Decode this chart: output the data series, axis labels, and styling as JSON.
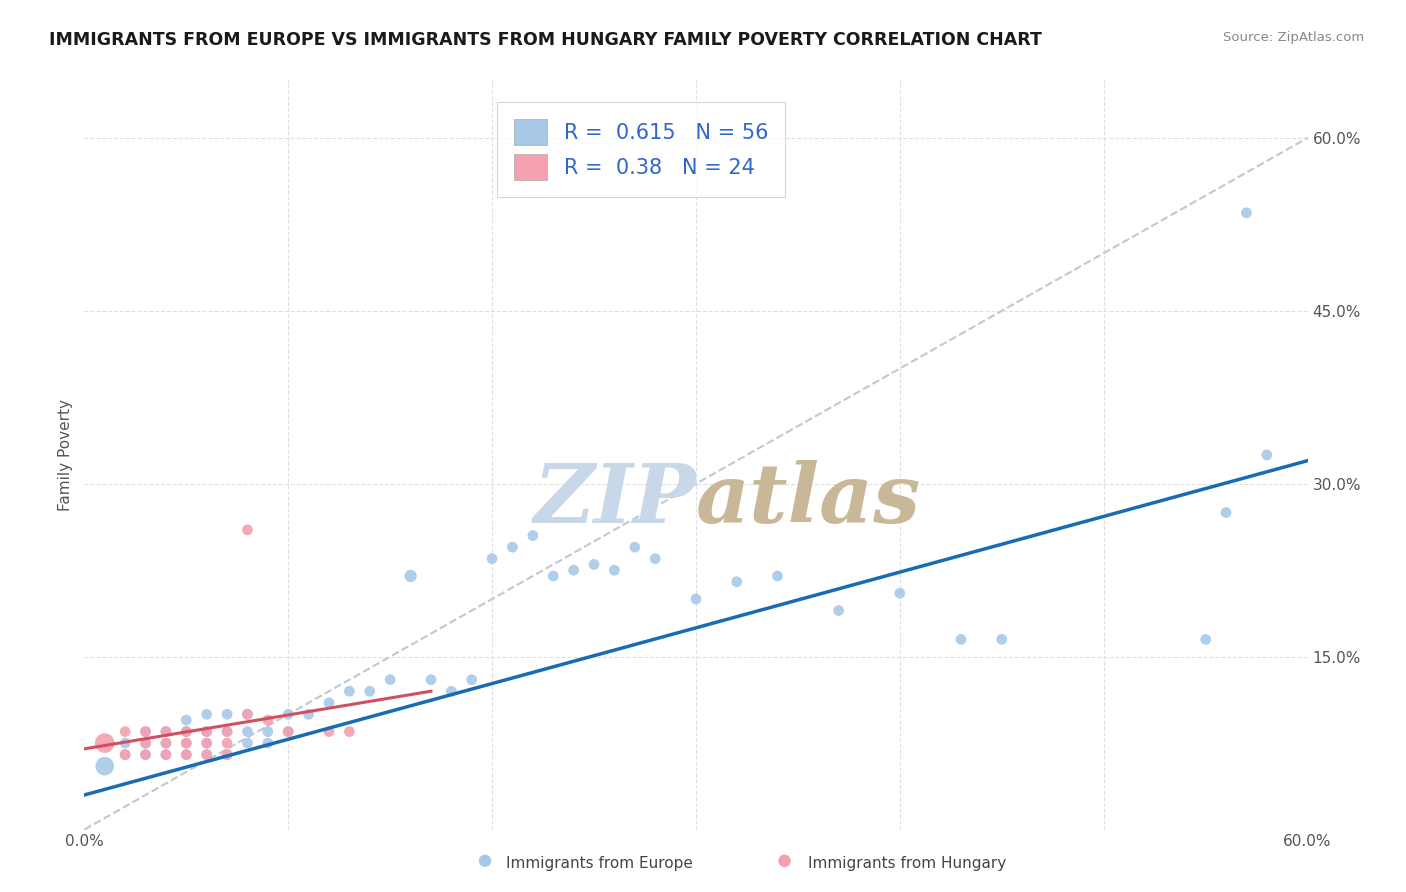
{
  "title": "IMMIGRANTS FROM EUROPE VS IMMIGRANTS FROM HUNGARY FAMILY POVERTY CORRELATION CHART",
  "source": "Source: ZipAtlas.com",
  "ylabel": "Family Poverty",
  "xlim": [
    0.0,
    0.6
  ],
  "ylim": [
    0.0,
    0.65
  ],
  "ytick_positions": [
    0.15,
    0.3,
    0.45,
    0.6
  ],
  "ytick_labels": [
    "15.0%",
    "30.0%",
    "45.0%",
    "60.0%"
  ],
  "r_europe": 0.615,
  "n_europe": 56,
  "r_hungary": 0.38,
  "n_hungary": 24,
  "europe_color": "#a8c8e8",
  "hungary_color": "#f4a0b0",
  "europe_line_color": "#1a6bb5",
  "hungary_line_color": "#d05060",
  "diagonal_color": "#c0c8d0",
  "watermark_zip_color": "#c8d8e8",
  "watermark_atlas_color": "#c8b898",
  "europe_scatter_x": [
    0.01,
    0.02,
    0.02,
    0.03,
    0.03,
    0.03,
    0.04,
    0.04,
    0.04,
    0.05,
    0.05,
    0.05,
    0.05,
    0.06,
    0.06,
    0.06,
    0.06,
    0.07,
    0.07,
    0.07,
    0.08,
    0.08,
    0.08,
    0.09,
    0.09,
    0.1,
    0.1,
    0.11,
    0.12,
    0.13,
    0.14,
    0.15,
    0.16,
    0.17,
    0.18,
    0.19,
    0.2,
    0.21,
    0.22,
    0.23,
    0.24,
    0.25,
    0.26,
    0.27,
    0.28,
    0.3,
    0.32,
    0.34,
    0.37,
    0.4,
    0.43,
    0.45,
    0.55,
    0.56,
    0.57,
    0.58
  ],
  "europe_scatter_y": [
    0.055,
    0.075,
    0.065,
    0.065,
    0.075,
    0.085,
    0.065,
    0.075,
    0.085,
    0.075,
    0.065,
    0.085,
    0.095,
    0.065,
    0.075,
    0.085,
    0.1,
    0.065,
    0.085,
    0.1,
    0.075,
    0.085,
    0.1,
    0.085,
    0.075,
    0.085,
    0.1,
    0.1,
    0.11,
    0.12,
    0.12,
    0.13,
    0.22,
    0.13,
    0.12,
    0.13,
    0.235,
    0.245,
    0.255,
    0.22,
    0.225,
    0.23,
    0.225,
    0.245,
    0.235,
    0.2,
    0.215,
    0.22,
    0.19,
    0.205,
    0.165,
    0.165,
    0.165,
    0.275,
    0.535,
    0.325
  ],
  "europe_scatter_size": [
    180,
    60,
    60,
    60,
    60,
    60,
    60,
    60,
    60,
    60,
    60,
    60,
    60,
    60,
    60,
    60,
    60,
    60,
    60,
    60,
    60,
    60,
    60,
    60,
    60,
    60,
    60,
    60,
    60,
    60,
    60,
    60,
    80,
    60,
    60,
    60,
    60,
    60,
    60,
    60,
    60,
    60,
    60,
    60,
    60,
    60,
    60,
    60,
    60,
    60,
    60,
    60,
    60,
    60,
    60,
    60
  ],
  "hungary_scatter_x": [
    0.01,
    0.02,
    0.02,
    0.03,
    0.03,
    0.03,
    0.04,
    0.04,
    0.04,
    0.05,
    0.05,
    0.05,
    0.06,
    0.06,
    0.06,
    0.07,
    0.07,
    0.07,
    0.08,
    0.08,
    0.09,
    0.1,
    0.12,
    0.13
  ],
  "hungary_scatter_y": [
    0.075,
    0.085,
    0.065,
    0.085,
    0.065,
    0.075,
    0.075,
    0.065,
    0.085,
    0.085,
    0.065,
    0.075,
    0.085,
    0.065,
    0.075,
    0.085,
    0.065,
    0.075,
    0.1,
    0.26,
    0.095,
    0.085,
    0.085,
    0.085
  ],
  "hungary_scatter_size": [
    200,
    60,
    60,
    60,
    60,
    60,
    60,
    60,
    60,
    60,
    60,
    60,
    60,
    60,
    60,
    60,
    60,
    60,
    60,
    60,
    60,
    60,
    60,
    60
  ]
}
